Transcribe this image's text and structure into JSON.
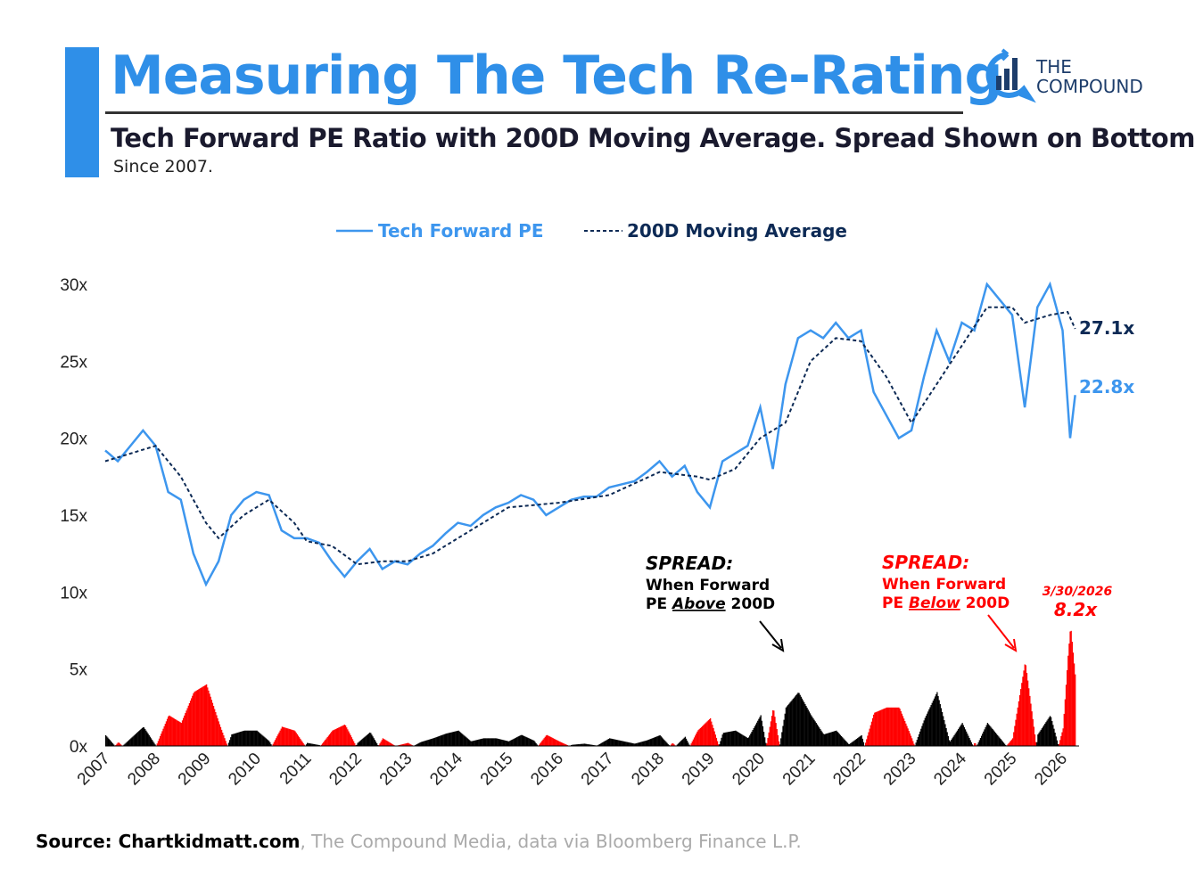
{
  "header": {
    "title": "Measuring The Tech Re-Rating",
    "subtitle": "Tech Forward PE Ratio with 200D Moving Average. Spread Shown on Bottom",
    "note": "Since 2007.",
    "logo": "THE COMPOUND",
    "logo_line1": "THE",
    "logo_line2": "COMPOUND"
  },
  "source": {
    "bold": "Source: Chartkidmatt.com",
    "rest": ", The Compound Media, data via Bloomberg Finance L.P."
  },
  "colors": {
    "pe": "#3d96ee",
    "ma": "#0d2a55",
    "above": "#000000",
    "below": "#ff0000",
    "accent": "#2f8fe8"
  },
  "chart_data": {
    "type": "line",
    "legend": {
      "position": "top",
      "entries": [
        "Tech Forward PE",
        "200D Moving Average"
      ]
    },
    "y_ticks": [
      "0x",
      "5x",
      "10x",
      "15x",
      "20x",
      "25x",
      "30x"
    ],
    "ylim": [
      0,
      32
    ],
    "x_ticks": [
      "2007",
      "2008",
      "2009",
      "2010",
      "2011",
      "2012",
      "2013",
      "2014",
      "2015",
      "2016",
      "2017",
      "2018",
      "2019",
      "2020",
      "2021",
      "2022",
      "2023",
      "2024",
      "2025",
      "2026"
    ],
    "series": [
      {
        "name": "Tech Forward PE",
        "x": [
          2007,
          2007.25,
          2007.5,
          2007.75,
          2008,
          2008.25,
          2008.5,
          2008.75,
          2009,
          2009.25,
          2009.5,
          2009.75,
          2010,
          2010.25,
          2010.5,
          2010.75,
          2011,
          2011.25,
          2011.5,
          2011.75,
          2012,
          2012.25,
          2012.5,
          2012.75,
          2013,
          2013.25,
          2013.5,
          2013.75,
          2014,
          2014.25,
          2014.5,
          2014.75,
          2015,
          2015.25,
          2015.5,
          2015.75,
          2016,
          2016.25,
          2016.5,
          2016.75,
          2017,
          2017.25,
          2017.5,
          2017.75,
          2018,
          2018.25,
          2018.5,
          2018.75,
          2019,
          2019.25,
          2019.5,
          2019.75,
          2020,
          2020.25,
          2020.5,
          2020.75,
          2021,
          2021.25,
          2021.5,
          2021.75,
          2022,
          2022.25,
          2022.5,
          2022.75,
          2023,
          2023.25,
          2023.5,
          2023.75,
          2024,
          2024.25,
          2024.5,
          2024.75,
          2025,
          2025.25,
          2025.5,
          2025.75,
          2026,
          2026.15,
          2026.25
        ],
        "y": [
          19.2,
          18.5,
          19.5,
          20.5,
          19.5,
          16.5,
          16,
          12.5,
          10.5,
          12,
          15,
          16,
          16.5,
          16.3,
          14,
          13.5,
          13.5,
          13.2,
          12,
          11,
          12,
          12.8,
          11.5,
          12,
          11.8,
          12.5,
          13,
          13.8,
          14.5,
          14.3,
          15,
          15.5,
          15.8,
          16.3,
          16,
          15,
          15.5,
          16,
          16.2,
          16.2,
          16.8,
          17,
          17.2,
          17.8,
          18.5,
          17.5,
          18.2,
          16.5,
          15.5,
          18.5,
          19,
          19.5,
          22,
          18,
          23.5,
          26.5,
          27,
          26.5,
          27.5,
          26.5,
          27,
          23,
          21.5,
          20,
          20.5,
          24,
          27,
          25,
          27.5,
          27,
          30,
          29,
          28,
          22,
          28.5,
          30,
          27,
          20,
          22.8
        ]
      },
      {
        "name": "200D Moving Average",
        "x": [
          2007,
          2007.5,
          2008,
          2008.5,
          2009,
          2009.25,
          2009.75,
          2010.25,
          2010.75,
          2011,
          2011.5,
          2012,
          2012.5,
          2013,
          2013.5,
          2014,
          2015,
          2016,
          2017,
          2018,
          2018.75,
          2019,
          2019.5,
          2020,
          2020.5,
          2021,
          2021.5,
          2022,
          2022.5,
          2023,
          2023.5,
          2024,
          2024.5,
          2025,
          2025.25,
          2025.75,
          2026.1,
          2026.25
        ],
        "y": [
          18.5,
          19,
          19.5,
          17.5,
          14.5,
          13.5,
          15,
          16,
          14.5,
          13.3,
          13,
          11.8,
          12,
          12,
          12.5,
          13.5,
          15.5,
          15.8,
          16.3,
          17.8,
          17.5,
          17.3,
          18,
          20,
          21,
          25,
          26.5,
          26.3,
          24,
          21,
          23.5,
          26,
          28.5,
          28.5,
          27.5,
          28,
          28.2,
          27.1
        ]
      }
    ],
    "end_labels": {
      "ma": "27.1x",
      "pe": "22.8x"
    },
    "annotations": {
      "above_title": "SPREAD:",
      "above_l1": "When Forward",
      "above_l2a": "PE ",
      "above_l2b": "Above",
      "above_l2c": " 200D",
      "below_title": "SPREAD:",
      "below_l1": "When Forward",
      "below_l2a": "PE ",
      "below_l2b": "Below",
      "below_l2c": " 200D",
      "latest_date": "3/30/2026",
      "latest_value": "8.2x"
    }
  }
}
